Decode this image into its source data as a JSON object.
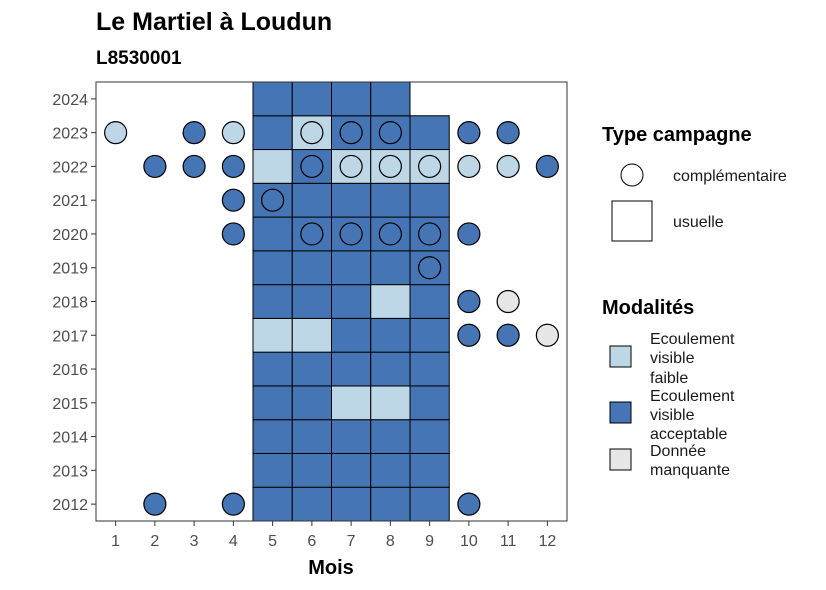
{
  "chart_data": {
    "type": "heatmap",
    "title": "Le Martiel à Loudun",
    "subtitle": "L8530001",
    "xlabel": "Mois",
    "ylabel": "",
    "x_ticks": [
      "1",
      "2",
      "3",
      "4",
      "5",
      "6",
      "7",
      "8",
      "9",
      "10",
      "11",
      "12"
    ],
    "y_ticks": [
      "2012",
      "2013",
      "2014",
      "2015",
      "2016",
      "2017",
      "2018",
      "2019",
      "2020",
      "2021",
      "2022",
      "2023",
      "2024"
    ],
    "xlim": [
      0.5,
      12.5
    ],
    "ylim": [
      2011.5,
      2024.5
    ],
    "grid": false,
    "legend_position": "right",
    "colors": {
      "faible": "#bdd7e7",
      "acceptable": "#4575b4",
      "manquante": "#e6e6e6",
      "outline": "#000000",
      "panel_border": "#333333"
    },
    "legend_campagne": {
      "title": "Type campagne",
      "items": [
        {
          "shape": "circle",
          "label": "complémentaire"
        },
        {
          "shape": "square",
          "label": "usuelle"
        }
      ]
    },
    "legend_modalites": {
      "title": "Modalités",
      "items": [
        {
          "key": "faible",
          "label_lines": [
            "Ecoulement",
            "visible",
            "faible"
          ]
        },
        {
          "key": "acceptable",
          "label_lines": [
            "Ecoulement",
            "visible",
            "acceptable"
          ]
        },
        {
          "key": "manquante",
          "label_lines": [
            "Donnée",
            "manquante"
          ]
        }
      ]
    },
    "usuelle": [
      {
        "year": 2012,
        "month": 5,
        "value": "acceptable"
      },
      {
        "year": 2012,
        "month": 6,
        "value": "acceptable"
      },
      {
        "year": 2012,
        "month": 7,
        "value": "acceptable"
      },
      {
        "year": 2012,
        "month": 8,
        "value": "acceptable"
      },
      {
        "year": 2012,
        "month": 9,
        "value": "acceptable"
      },
      {
        "year": 2013,
        "month": 5,
        "value": "acceptable"
      },
      {
        "year": 2013,
        "month": 6,
        "value": "acceptable"
      },
      {
        "year": 2013,
        "month": 7,
        "value": "acceptable"
      },
      {
        "year": 2013,
        "month": 8,
        "value": "acceptable"
      },
      {
        "year": 2013,
        "month": 9,
        "value": "acceptable"
      },
      {
        "year": 2014,
        "month": 5,
        "value": "acceptable"
      },
      {
        "year": 2014,
        "month": 6,
        "value": "acceptable"
      },
      {
        "year": 2014,
        "month": 7,
        "value": "acceptable"
      },
      {
        "year": 2014,
        "month": 8,
        "value": "acceptable"
      },
      {
        "year": 2014,
        "month": 9,
        "value": "acceptable"
      },
      {
        "year": 2015,
        "month": 5,
        "value": "acceptable"
      },
      {
        "year": 2015,
        "month": 6,
        "value": "acceptable"
      },
      {
        "year": 2015,
        "month": 7,
        "value": "faible"
      },
      {
        "year": 2015,
        "month": 8,
        "value": "faible"
      },
      {
        "year": 2015,
        "month": 9,
        "value": "acceptable"
      },
      {
        "year": 2016,
        "month": 5,
        "value": "acceptable"
      },
      {
        "year": 2016,
        "month": 6,
        "value": "acceptable"
      },
      {
        "year": 2016,
        "month": 7,
        "value": "acceptable"
      },
      {
        "year": 2016,
        "month": 8,
        "value": "acceptable"
      },
      {
        "year": 2016,
        "month": 9,
        "value": "acceptable"
      },
      {
        "year": 2017,
        "month": 5,
        "value": "faible"
      },
      {
        "year": 2017,
        "month": 6,
        "value": "faible"
      },
      {
        "year": 2017,
        "month": 7,
        "value": "acceptable"
      },
      {
        "year": 2017,
        "month": 8,
        "value": "acceptable"
      },
      {
        "year": 2017,
        "month": 9,
        "value": "acceptable"
      },
      {
        "year": 2018,
        "month": 5,
        "value": "acceptable"
      },
      {
        "year": 2018,
        "month": 6,
        "value": "acceptable"
      },
      {
        "year": 2018,
        "month": 7,
        "value": "acceptable"
      },
      {
        "year": 2018,
        "month": 8,
        "value": "faible"
      },
      {
        "year": 2018,
        "month": 9,
        "value": "acceptable"
      },
      {
        "year": 2019,
        "month": 5,
        "value": "acceptable"
      },
      {
        "year": 2019,
        "month": 6,
        "value": "acceptable"
      },
      {
        "year": 2019,
        "month": 7,
        "value": "acceptable"
      },
      {
        "year": 2019,
        "month": 8,
        "value": "acceptable"
      },
      {
        "year": 2019,
        "month": 9,
        "value": "acceptable"
      },
      {
        "year": 2020,
        "month": 5,
        "value": "acceptable"
      },
      {
        "year": 2020,
        "month": 6,
        "value": "acceptable"
      },
      {
        "year": 2020,
        "month": 7,
        "value": "acceptable"
      },
      {
        "year": 2020,
        "month": 8,
        "value": "acceptable"
      },
      {
        "year": 2020,
        "month": 9,
        "value": "acceptable"
      },
      {
        "year": 2021,
        "month": 5,
        "value": "acceptable"
      },
      {
        "year": 2021,
        "month": 6,
        "value": "acceptable"
      },
      {
        "year": 2021,
        "month": 7,
        "value": "acceptable"
      },
      {
        "year": 2021,
        "month": 8,
        "value": "acceptable"
      },
      {
        "year": 2021,
        "month": 9,
        "value": "acceptable"
      },
      {
        "year": 2022,
        "month": 5,
        "value": "faible"
      },
      {
        "year": 2022,
        "month": 6,
        "value": "acceptable"
      },
      {
        "year": 2022,
        "month": 7,
        "value": "faible"
      },
      {
        "year": 2022,
        "month": 8,
        "value": "faible"
      },
      {
        "year": 2022,
        "month": 9,
        "value": "faible"
      },
      {
        "year": 2023,
        "month": 5,
        "value": "acceptable"
      },
      {
        "year": 2023,
        "month": 6,
        "value": "faible"
      },
      {
        "year": 2023,
        "month": 7,
        "value": "acceptable"
      },
      {
        "year": 2023,
        "month": 8,
        "value": "acceptable"
      },
      {
        "year": 2023,
        "month": 9,
        "value": "acceptable"
      },
      {
        "year": 2024,
        "month": 5,
        "value": "acceptable"
      },
      {
        "year": 2024,
        "month": 6,
        "value": "acceptable"
      },
      {
        "year": 2024,
        "month": 7,
        "value": "acceptable"
      },
      {
        "year": 2024,
        "month": 8,
        "value": "acceptable"
      }
    ],
    "complementaire": [
      {
        "year": 2012,
        "month": 2,
        "value": "acceptable"
      },
      {
        "year": 2012,
        "month": 4,
        "value": "acceptable"
      },
      {
        "year": 2012,
        "month": 10,
        "value": "acceptable"
      },
      {
        "year": 2017,
        "month": 10,
        "value": "acceptable"
      },
      {
        "year": 2017,
        "month": 11,
        "value": "acceptable"
      },
      {
        "year": 2017,
        "month": 12,
        "value": "manquante"
      },
      {
        "year": 2018,
        "month": 10,
        "value": "acceptable"
      },
      {
        "year": 2018,
        "month": 11,
        "value": "manquante"
      },
      {
        "year": 2019,
        "month": 9,
        "value": "acceptable"
      },
      {
        "year": 2020,
        "month": 4,
        "value": "acceptable"
      },
      {
        "year": 2020,
        "month": 6,
        "value": "acceptable"
      },
      {
        "year": 2020,
        "month": 7,
        "value": "acceptable"
      },
      {
        "year": 2020,
        "month": 8,
        "value": "acceptable"
      },
      {
        "year": 2020,
        "month": 9,
        "value": "acceptable"
      },
      {
        "year": 2020,
        "month": 10,
        "value": "acceptable"
      },
      {
        "year": 2021,
        "month": 4,
        "value": "acceptable"
      },
      {
        "year": 2021,
        "month": 5,
        "value": "acceptable"
      },
      {
        "year": 2022,
        "month": 2,
        "value": "acceptable"
      },
      {
        "year": 2022,
        "month": 3,
        "value": "acceptable"
      },
      {
        "year": 2022,
        "month": 4,
        "value": "acceptable"
      },
      {
        "year": 2022,
        "month": 6,
        "value": "acceptable"
      },
      {
        "year": 2022,
        "month": 7,
        "value": "faible"
      },
      {
        "year": 2022,
        "month": 8,
        "value": "faible"
      },
      {
        "year": 2022,
        "month": 9,
        "value": "faible"
      },
      {
        "year": 2022,
        "month": 10,
        "value": "faible"
      },
      {
        "year": 2022,
        "month": 11,
        "value": "faible"
      },
      {
        "year": 2022,
        "month": 12,
        "value": "acceptable"
      },
      {
        "year": 2023,
        "month": 1,
        "value": "faible"
      },
      {
        "year": 2023,
        "month": 3,
        "value": "acceptable"
      },
      {
        "year": 2023,
        "month": 4,
        "value": "faible"
      },
      {
        "year": 2023,
        "month": 6,
        "value": "faible"
      },
      {
        "year": 2023,
        "month": 7,
        "value": "acceptable"
      },
      {
        "year": 2023,
        "month": 8,
        "value": "acceptable"
      },
      {
        "year": 2023,
        "month": 10,
        "value": "acceptable"
      },
      {
        "year": 2023,
        "month": 11,
        "value": "acceptable"
      }
    ]
  }
}
